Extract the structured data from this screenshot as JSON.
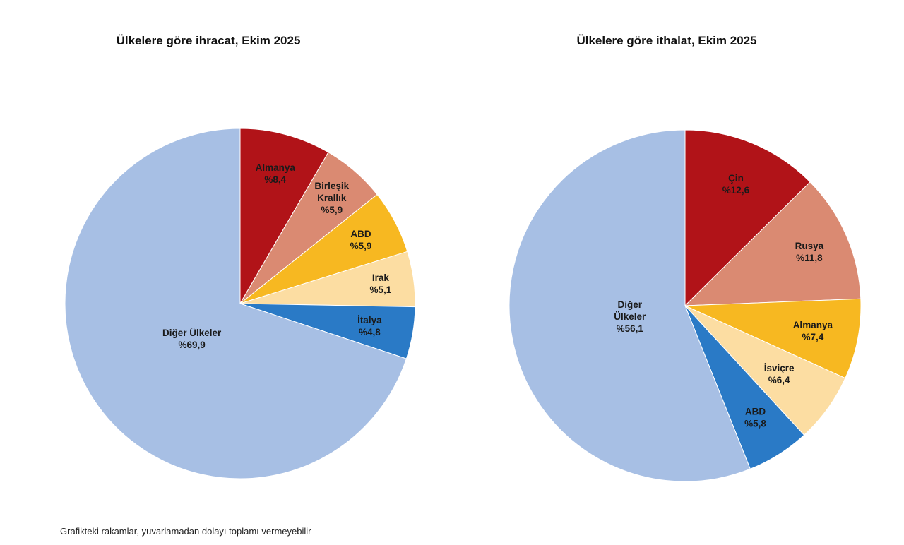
{
  "chart_data": [
    {
      "type": "pie",
      "title": "Ülkelere göre ihracat, Ekim 2025",
      "slices": [
        {
          "label": [
            "Almanya"
          ],
          "value": 8.4,
          "value_label": "%8,4",
          "color": "#B11318"
        },
        {
          "label": [
            "Birleşik",
            "Krallık"
          ],
          "value": 5.9,
          "value_label": "%5,9",
          "color": "#DA8A72"
        },
        {
          "label": [
            "ABD"
          ],
          "value": 5.9,
          "value_label": "%5,9",
          "color": "#F7B821"
        },
        {
          "label": [
            "Irak"
          ],
          "value": 5.1,
          "value_label": "%5,1",
          "color": "#FCDDA2"
        },
        {
          "label": [
            "İtalya"
          ],
          "value": 4.8,
          "value_label": "%4,8",
          "color": "#2A7AC6"
        },
        {
          "label": [
            "Diğer Ülkeler"
          ],
          "value": 69.9,
          "value_label": "%69,9",
          "color": "#A7BFE4"
        }
      ]
    },
    {
      "type": "pie",
      "title": "Ülkelere göre ithalat, Ekim 2025",
      "slices": [
        {
          "label": [
            "Çin"
          ],
          "value": 12.6,
          "value_label": "%12,6",
          "color": "#B11318"
        },
        {
          "label": [
            "Rusya"
          ],
          "value": 11.8,
          "value_label": "%11,8",
          "color": "#DA8A72"
        },
        {
          "label": [
            "Almanya"
          ],
          "value": 7.4,
          "value_label": "%7,4",
          "color": "#F7B821"
        },
        {
          "label": [
            "İsviçre"
          ],
          "value": 6.4,
          "value_label": "%6,4",
          "color": "#FCDDA2"
        },
        {
          "label": [
            "ABD"
          ],
          "value": 5.8,
          "value_label": "%5,8",
          "color": "#2A7AC6"
        },
        {
          "label": [
            "Diğer",
            "Ülkeler"
          ],
          "value": 56.1,
          "value_label": "%56,1",
          "color": "#A7BFE4"
        }
      ]
    }
  ],
  "footnote": "Grafikteki rakamlar, yuvarlamadan dolayı toplamı vermeyebilir"
}
